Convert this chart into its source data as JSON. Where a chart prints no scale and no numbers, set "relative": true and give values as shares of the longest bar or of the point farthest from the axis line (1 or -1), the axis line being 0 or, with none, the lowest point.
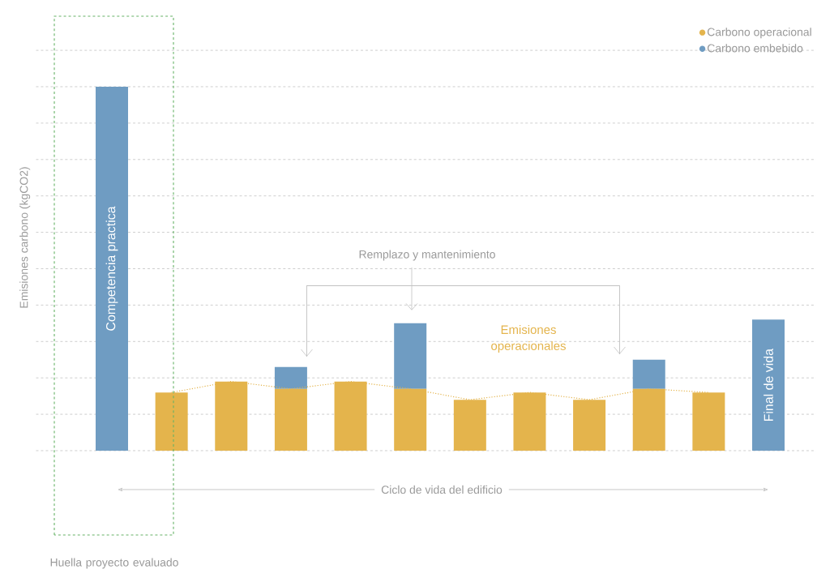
{
  "chart_data": {
    "type": "bar",
    "relative": true,
    "stacked": true,
    "grid": "y",
    "legend": "top right",
    "xlabel": "Ciclo de vida del edificio",
    "ylabel": "Emisiones carbono (kgCO2)",
    "annotations": [
      "Remplazo y mantenimiento",
      "Emisiones operacionales",
      "Huella proyecto evaluado",
      "Competencia practica",
      "Final de vida"
    ],
    "categories": [
      null,
      null,
      null,
      null,
      null,
      null,
      null,
      null,
      null,
      null,
      null,
      null
    ],
    "series": [
      {
        "name": "Carbono operacional",
        "color": "#e4b44c",
        "values": [
          null,
          0.16,
          0.19,
          0.17,
          0.19,
          0.17,
          0.14,
          0.16,
          0.14,
          0.17,
          0.16,
          null
        ]
      },
      {
        "name": "Carbono embebido",
        "color": "#6f9cc2",
        "values": [
          1.0,
          null,
          null,
          0.06,
          null,
          0.18,
          null,
          null,
          null,
          0.08,
          null,
          0.36
        ]
      }
    ]
  }
}
